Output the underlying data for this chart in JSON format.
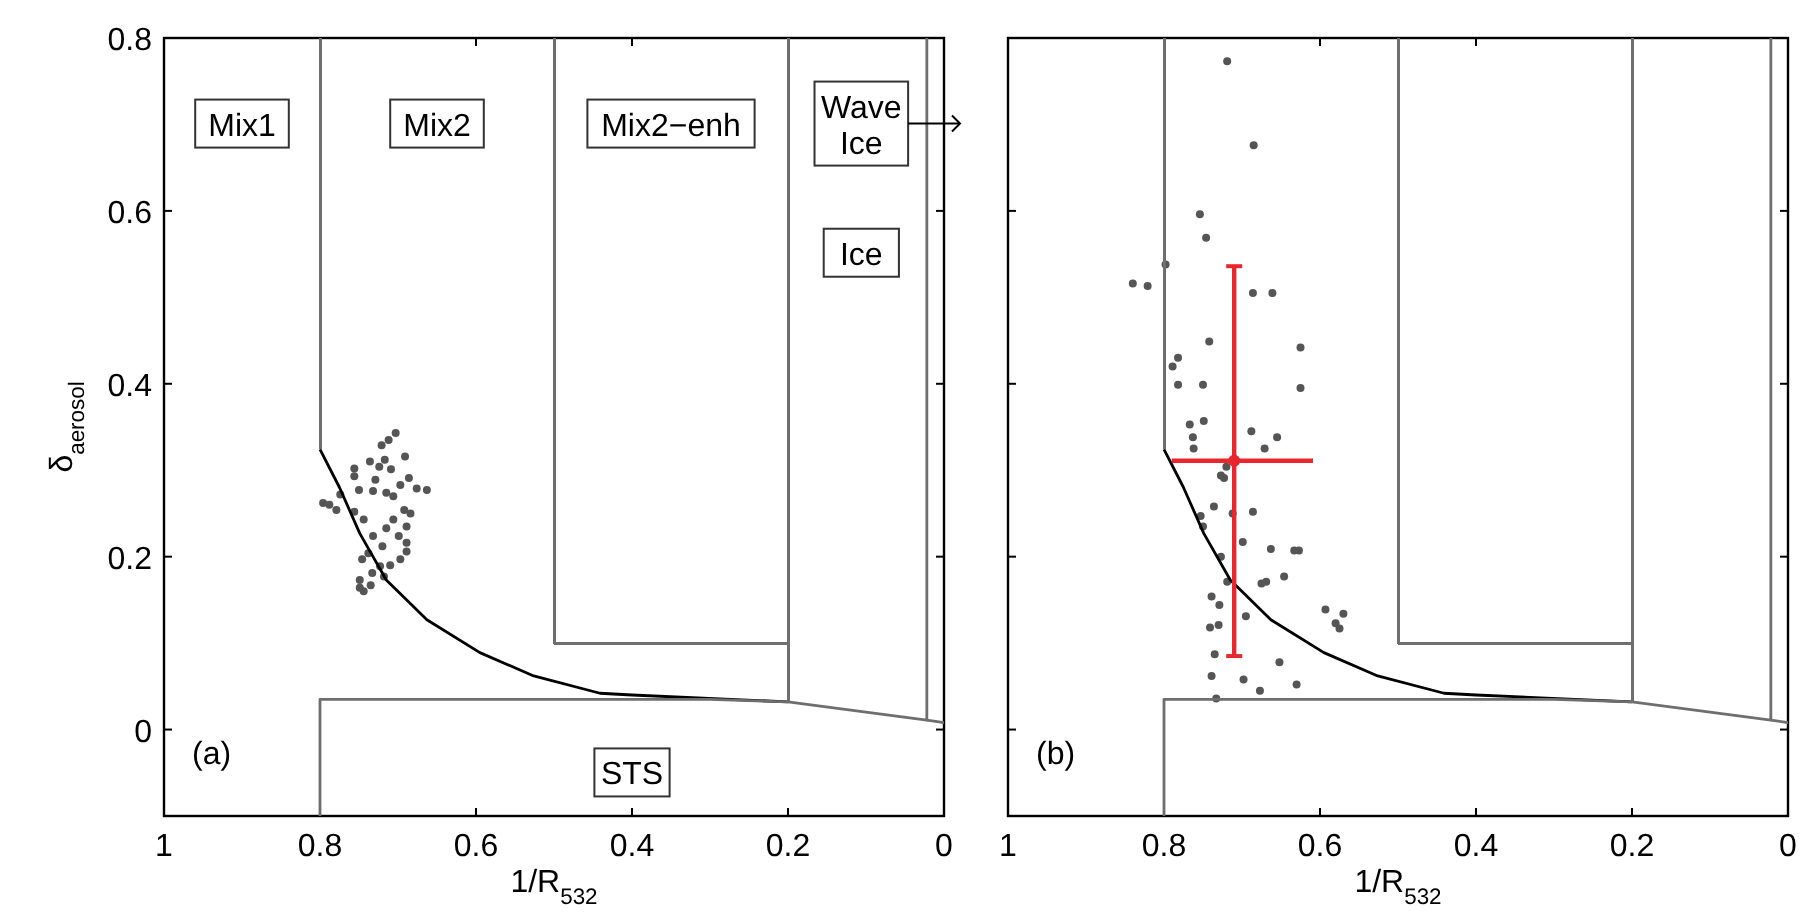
{
  "chart_data": [
    {
      "type": "scatter",
      "title": "(a)",
      "xlabel": "1/R$_{532}$",
      "ylabel": "δ$_{aerosol}$",
      "xlim": [
        1,
        0
      ],
      "xticks": [
        1,
        0.8,
        0.6,
        0.4,
        0.2,
        0
      ],
      "ylim": [
        -0.1,
        0.8
      ],
      "yticks": [
        0,
        0.2,
        0.4,
        0.6,
        0.8
      ],
      "marker": "circle",
      "series": [
        {
          "color": "#555555",
          "x": [
            0.703,
            0.712,
            0.721,
            0.691,
            0.756,
            0.736,
            0.717,
            0.724,
            0.709,
            0.756,
            0.729,
            0.686,
            0.676,
            0.663,
            0.697,
            0.75,
            0.732,
            0.715,
            0.706,
            0.774,
            0.796,
            0.788,
            0.779,
            0.756,
            0.744,
            0.692,
            0.706,
            0.684,
            0.689,
            0.715,
            0.732,
            0.699,
            0.72,
            0.738,
            0.689,
            0.689,
            0.746,
            0.697,
            0.71,
            0.723,
            0.733,
            0.749,
            0.718,
            0.735,
            0.749,
            0.744
          ],
          "values": [
            0.343,
            0.335,
            0.329,
            0.316,
            0.302,
            0.31,
            0.312,
            0.304,
            0.301,
            0.293,
            0.289,
            0.291,
            0.279,
            0.277,
            0.283,
            0.277,
            0.276,
            0.274,
            0.27,
            0.272,
            0.262,
            0.26,
            0.254,
            0.252,
            0.243,
            0.254,
            0.243,
            0.25,
            0.235,
            0.233,
            0.224,
            0.224,
            0.212,
            0.204,
            0.216,
            0.206,
            0.197,
            0.197,
            0.19,
            0.189,
            0.181,
            0.173,
            0.177,
            0.167,
            0.164,
            0.16
          ]
        },
        {
          "type": "line",
          "color": "#000000",
          "marker": "none",
          "x": [
            0.8,
            0.775,
            0.749,
            0.715,
            0.663,
            0.595,
            0.526,
            0.441,
            0.4,
            0.2
          ],
          "values": [
            0.324,
            0.28,
            0.227,
            0.173,
            0.127,
            0.089,
            0.062,
            0.042,
            0.04,
            0.032
          ]
        },
        {
          "type": "line",
          "color": "#6e6e6e",
          "marker": "none",
          "x": [
            0.8,
            0.8
          ],
          "values": [
            0.324,
            0.8
          ]
        },
        {
          "type": "line",
          "color": "#6e6e6e",
          "marker": "none",
          "x": [
            0.8,
            0.8,
            0.3,
            0.2,
            0.022,
            0.022
          ],
          "values": [
            -0.1,
            0.035,
            0.035,
            0.032,
            0.011,
            0.8
          ]
        },
        {
          "type": "line",
          "color": "#6e6e6e",
          "marker": "none",
          "x": [
            0.5,
            0.5,
            0.2,
            0.2
          ],
          "values": [
            0.8,
            0.1,
            0.1,
            0.8
          ]
        },
        {
          "type": "line",
          "color": "#6e6e6e",
          "marker": "none",
          "x": [
            0.2,
            0.2
          ],
          "values": [
            0.032,
            0.1
          ]
        },
        {
          "type": "line",
          "color": "#6e6e6e",
          "marker": "none",
          "x": [
            0.022,
            0
          ],
          "values": [
            0.011,
            0.008
          ]
        }
      ],
      "annotations": [
        "Mix1",
        "Mix2",
        "Mix2−enh",
        "Wave Ice",
        "Ice",
        "STS"
      ]
    },
    {
      "type": "scatter",
      "title": "(b)",
      "xlabel": "1/R$_{532}$",
      "xlim": [
        1,
        0
      ],
      "xticks": [
        1,
        0.8,
        0.6,
        0.4,
        0.2,
        0
      ],
      "ylim": [
        -0.1,
        0.8
      ],
      "yticks": [
        0,
        0.2,
        0.4,
        0.6,
        0.8
      ],
      "tick_labels": "x",
      "marker": "circle",
      "series": [
        {
          "color": "#555555",
          "x": [
            0.719,
            0.685,
            0.754,
            0.746,
            0.798,
            0.84,
            0.821,
            0.686,
            0.661,
            0.742,
            0.625,
            0.782,
            0.789,
            0.625,
            0.782,
            0.75,
            0.767,
            0.749,
            0.763,
            0.762,
            0.688,
            0.655,
            0.671,
            0.72,
            0.727,
            0.723,
            0.736,
            0.712,
            0.686,
            0.753,
            0.75,
            0.727,
            0.699,
            0.663,
            0.633,
            0.627,
            0.646,
            0.719,
            0.675,
            0.669,
            0.739,
            0.729,
            0.593,
            0.57,
            0.58,
            0.575,
            0.695,
            0.741,
            0.73,
            0.735,
            0.652,
            0.739,
            0.698,
            0.677,
            0.63,
            0.733
          ],
          "values": [
            0.773,
            0.676,
            0.596,
            0.569,
            0.538,
            0.516,
            0.513,
            0.505,
            0.505,
            0.449,
            0.442,
            0.43,
            0.42,
            0.395,
            0.399,
            0.399,
            0.353,
            0.357,
            0.338,
            0.325,
            0.345,
            0.338,
            0.325,
            0.304,
            0.294,
            0.291,
            0.258,
            0.25,
            0.252,
            0.247,
            0.235,
            0.2,
            0.217,
            0.209,
            0.207,
            0.207,
            0.177,
            0.171,
            0.169,
            0.171,
            0.154,
            0.144,
            0.139,
            0.134,
            0.123,
            0.117,
            0.131,
            0.118,
            0.121,
            0.087,
            0.078,
            0.062,
            0.058,
            0.045,
            0.052,
            0.036
          ]
        },
        {
          "type": "line",
          "color": "#000000",
          "marker": "none",
          "x": [
            0.8,
            0.775,
            0.749,
            0.715,
            0.663,
            0.595,
            0.526,
            0.441,
            0.4,
            0.2
          ],
          "values": [
            0.324,
            0.28,
            0.227,
            0.173,
            0.127,
            0.089,
            0.062,
            0.042,
            0.04,
            0.032
          ]
        },
        {
          "type": "line",
          "color": "#6e6e6e",
          "marker": "none",
          "x": [
            0.8,
            0.8
          ],
          "values": [
            0.324,
            0.8
          ]
        },
        {
          "type": "line",
          "color": "#6e6e6e",
          "marker": "none",
          "x": [
            0.8,
            0.8,
            0.3,
            0.2,
            0.022,
            0.022
          ],
          "values": [
            -0.1,
            0.035,
            0.035,
            0.032,
            0.011,
            0.8
          ]
        },
        {
          "type": "line",
          "color": "#6e6e6e",
          "marker": "none",
          "x": [
            0.5,
            0.5,
            0.2,
            0.2
          ],
          "values": [
            0.8,
            0.1,
            0.1,
            0.8
          ]
        },
        {
          "type": "line",
          "color": "#6e6e6e",
          "marker": "none",
          "x": [
            0.2,
            0.2
          ],
          "values": [
            0.032,
            0.1
          ]
        },
        {
          "type": "line",
          "color": "#6e6e6e",
          "marker": "none",
          "x": [
            0.022,
            0
          ],
          "values": [
            0.011,
            0.008
          ]
        },
        {
          "color": "#e8262b",
          "x": [
            0.71
          ],
          "values": [
            0.311
          ],
          "errors": [
            [
              0.085,
              0.536
            ]
          ],
          "xerrors": [
            [
              0.609,
              0.79
            ]
          ]
        }
      ]
    }
  ]
}
